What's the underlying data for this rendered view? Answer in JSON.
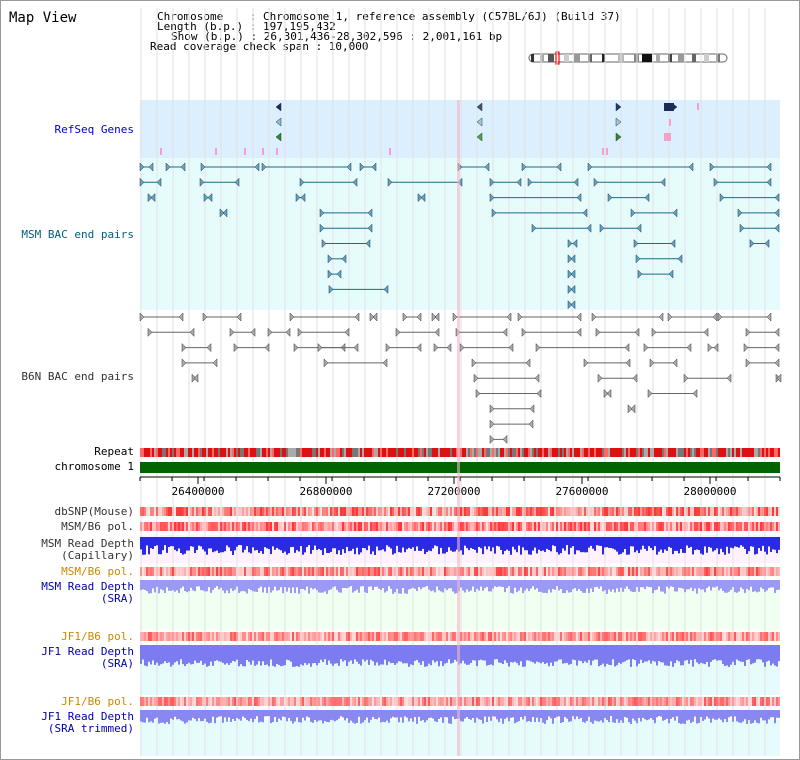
{
  "view_title": "Map View",
  "info": {
    "chromosome_line": "Chromosome    : Chromosome 1, reference assembly (C57BL/6J) (Build 37)",
    "length_line": "Length (b.p.) : 197,195,432",
    "show_line": "Show (b.p.) : 26,301,436-28,302,596 : 2,001,161 bp",
    "coverage_line": "Read coverage check span : 10,000"
  },
  "tracks": {
    "refseq": "RefSeq Genes",
    "msm_bac": "MSM BAC end pairs",
    "b6n_bac": "B6N BAC end pairs",
    "repeat": "Repeat",
    "chromosome": "chromosome 1",
    "dbsnp": "dbSNP(Mouse)",
    "msm_b6_pol_1": "MSM/B6 pol.",
    "msm_depth_cap_1": "MSM Read Depth",
    "msm_depth_cap_2": "(Capillary)",
    "msm_b6_pol_2": "MSM/B6 pol.",
    "msm_depth_sra_1": "MSM Read Depth",
    "msm_depth_sra_2": "(SRA)",
    "jf1_b6_pol_1": "JF1/B6 pol.",
    "jf1_depth_sra_1": "JF1 Read Depth",
    "jf1_depth_sra_2": "(SRA)",
    "jf1_b6_pol_2": "JF1/B6 pol.",
    "jf1_depth_trim_1": "JF1 Read Depth",
    "jf1_depth_trim_2": "(SRA trimmed)"
  },
  "axis_ticks": [
    "26400000",
    "26800000",
    "27200000",
    "27600000",
    "28000000"
  ],
  "colors": {
    "refseq_label": "#0000cc",
    "msm_bac_label": "#006080",
    "b6n_bac_label": "#333333",
    "pol_label_msm": "#333333",
    "pol_label_sra": "#cc8800",
    "depth_label": "#0000aa",
    "chromosome_bar": "#006400",
    "track_bg_blue": "#dcefff",
    "track_bg_cyan": "#e6fcfc"
  }
}
